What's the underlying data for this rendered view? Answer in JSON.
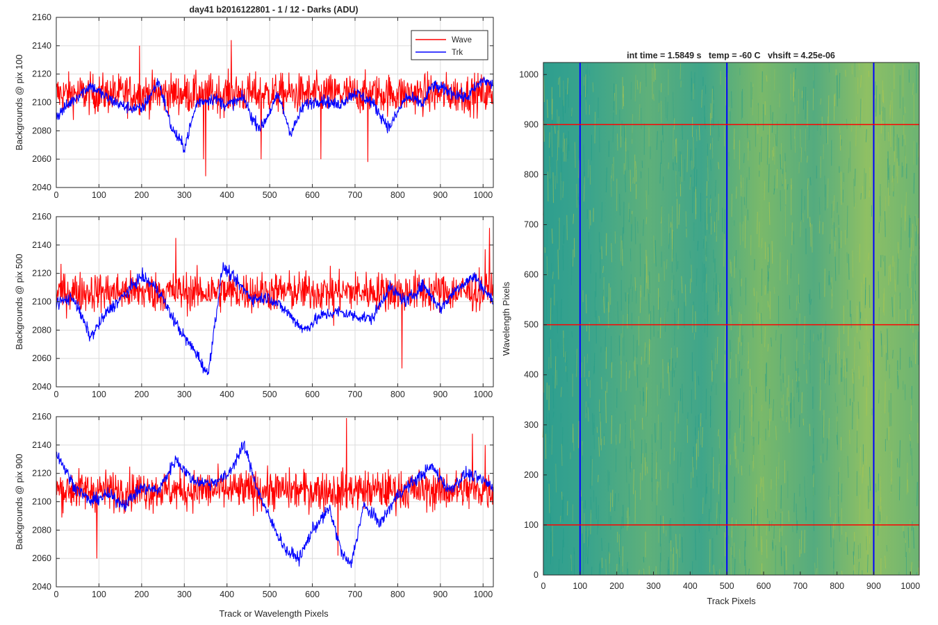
{
  "figure": {
    "main_title": "day41 b2016122801 - 1 / 12 - Darks (ADU)",
    "right_title": "int time = 1.5849 s   temp = -60 C   vhsift = 4.25e-06",
    "left_xlabel": "Track or Wavelength Pixels"
  },
  "colors": {
    "wave": "#ff0000",
    "trk": "#0000ff",
    "image_low": "#1f9a8a",
    "image_high": "#b9c94a"
  },
  "chart_data": [
    {
      "type": "line",
      "ylabel": "Backgrounds @ pix 100",
      "xlim": [
        0,
        1024
      ],
      "ylim": [
        2040,
        2160
      ],
      "x_ticks": [
        0,
        100,
        200,
        300,
        400,
        500,
        600,
        700,
        800,
        900,
        1000
      ],
      "y_ticks": [
        2040,
        2060,
        2080,
        2100,
        2120,
        2140,
        2160
      ],
      "grid": true,
      "legend": {
        "position": "top-right",
        "entries": [
          "Wave",
          "Trk"
        ]
      },
      "series": [
        {
          "name": "Wave",
          "color": "#ff0000",
          "mean": 2106,
          "noise": 10,
          "spikes": [
            [
              195,
              2140
            ],
            [
              345,
              2060
            ],
            [
              350,
              2048
            ],
            [
              480,
              2060
            ],
            [
              620,
              2060
            ],
            [
              730,
              2058
            ],
            [
              410,
              2144
            ]
          ]
        },
        {
          "name": "Trk",
          "color": "#0000ff",
          "x": [
            0,
            40,
            80,
            120,
            160,
            200,
            240,
            270,
            300,
            330,
            370,
            400,
            440,
            460,
            480,
            520,
            550,
            580,
            620,
            660,
            700,
            740,
            780,
            820,
            860,
            880,
            920,
            960,
            1000,
            1024
          ],
          "y": [
            2090,
            2102,
            2112,
            2103,
            2097,
            2095,
            2115,
            2082,
            2068,
            2100,
            2103,
            2098,
            2103,
            2088,
            2082,
            2105,
            2078,
            2098,
            2102,
            2098,
            2107,
            2100,
            2082,
            2104,
            2099,
            2112,
            2108,
            2103,
            2116,
            2112
          ]
        }
      ]
    },
    {
      "type": "line",
      "ylabel": "Backgrounds @ pix 500",
      "xlim": [
        0,
        1024
      ],
      "ylim": [
        2040,
        2160
      ],
      "x_ticks": [
        0,
        100,
        200,
        300,
        400,
        500,
        600,
        700,
        800,
        900,
        1000
      ],
      "y_ticks": [
        2040,
        2060,
        2080,
        2100,
        2120,
        2140,
        2160
      ],
      "grid": true,
      "series": [
        {
          "name": "Wave",
          "color": "#ff0000",
          "mean": 2107,
          "noise": 10,
          "spikes": [
            [
              280,
              2145
            ],
            [
              650,
              2083
            ],
            [
              810,
              2053
            ],
            [
              1015,
              2152
            ],
            [
              1005,
              2137
            ]
          ]
        },
        {
          "name": "Trk",
          "color": "#0000ff",
          "x": [
            0,
            40,
            80,
            120,
            160,
            200,
            240,
            270,
            300,
            330,
            355,
            390,
            420,
            460,
            500,
            540,
            580,
            620,
            660,
            700,
            740,
            780,
            820,
            860,
            900,
            940,
            980,
            1024
          ],
          "y": [
            2099,
            2103,
            2075,
            2093,
            2105,
            2118,
            2108,
            2090,
            2075,
            2063,
            2048,
            2125,
            2115,
            2102,
            2103,
            2093,
            2080,
            2090,
            2093,
            2090,
            2088,
            2110,
            2100,
            2112,
            2095,
            2110,
            2118,
            2100
          ]
        }
      ]
    },
    {
      "type": "line",
      "ylabel": "Backgrounds @ pix 900",
      "xlabel": "Track or Wavelength Pixels",
      "xlim": [
        0,
        1024
      ],
      "ylim": [
        2040,
        2160
      ],
      "x_ticks": [
        0,
        100,
        200,
        300,
        400,
        500,
        600,
        700,
        800,
        900,
        1000
      ],
      "y_ticks": [
        2040,
        2060,
        2080,
        2100,
        2120,
        2140,
        2160
      ],
      "grid": true,
      "series": [
        {
          "name": "Wave",
          "color": "#ff0000",
          "mean": 2108,
          "noise": 10,
          "spikes": [
            [
              95,
              2060
            ],
            [
              680,
              2159
            ],
            [
              660,
              2062
            ],
            [
              975,
              2148
            ],
            [
              1005,
              2140
            ]
          ]
        },
        {
          "name": "Trk",
          "color": "#0000ff",
          "x": [
            0,
            40,
            80,
            120,
            160,
            200,
            240,
            280,
            320,
            360,
            400,
            440,
            470,
            500,
            540,
            570,
            600,
            640,
            670,
            690,
            720,
            760,
            800,
            840,
            880,
            920,
            960,
            1000,
            1024
          ],
          "y": [
            2135,
            2112,
            2100,
            2105,
            2098,
            2110,
            2108,
            2130,
            2115,
            2113,
            2118,
            2140,
            2110,
            2088,
            2065,
            2060,
            2080,
            2095,
            2063,
            2055,
            2097,
            2085,
            2105,
            2115,
            2125,
            2108,
            2120,
            2115,
            2110
          ]
        }
      ]
    },
    {
      "type": "heatmap",
      "xlabel": "Track Pixels",
      "ylabel": "Wavelength Pixels",
      "xlim": [
        0,
        1024
      ],
      "ylim": [
        0,
        1024
      ],
      "x_ticks": [
        0,
        100,
        200,
        300,
        400,
        500,
        600,
        700,
        800,
        900,
        1000
      ],
      "y_ticks": [
        0,
        100,
        200,
        300,
        400,
        500,
        600,
        700,
        800,
        900,
        1000
      ],
      "horizontal_lines": [
        100,
        500,
        900
      ],
      "vertical_lines": [
        100,
        500,
        900
      ]
    }
  ]
}
